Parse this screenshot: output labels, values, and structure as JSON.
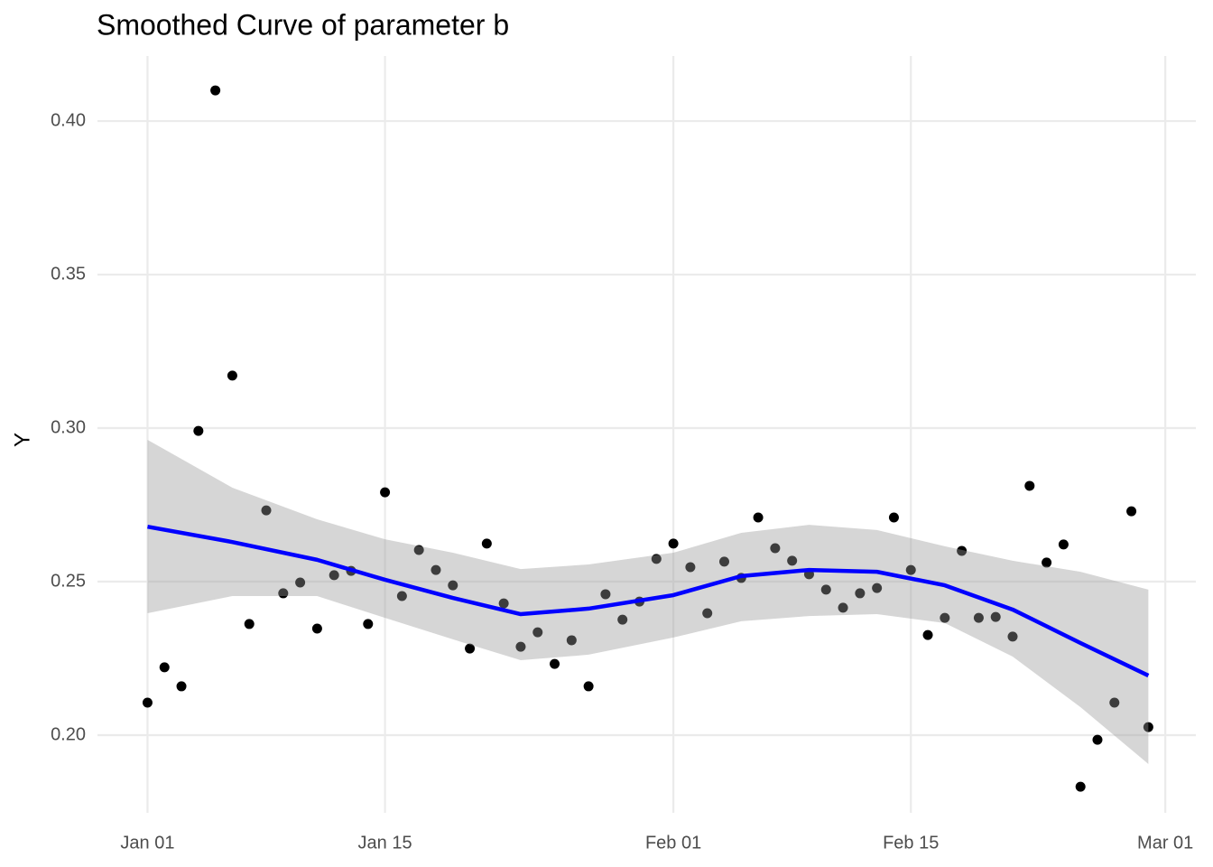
{
  "chart_data": {
    "type": "scatter",
    "title": "Smoothed Curve of parameter b",
    "y_label": "Y",
    "x": [
      0,
      1,
      2,
      3,
      4,
      5,
      6,
      7,
      8,
      9,
      10,
      11,
      12,
      13,
      14,
      15,
      16,
      17,
      18,
      19,
      20,
      21,
      22,
      23,
      24,
      25,
      26,
      27,
      28,
      29,
      30,
      31,
      32,
      33,
      34,
      35,
      36,
      37,
      38,
      39,
      40,
      41,
      42,
      43,
      44,
      45,
      46,
      47,
      48,
      49,
      50,
      51,
      52,
      53,
      54,
      55,
      56,
      57,
      58,
      59
    ],
    "values": [
      0.2106,
      0.2221,
      0.2159,
      0.2991,
      0.41,
      0.3171,
      0.2362,
      0.2732,
      0.2462,
      0.2497,
      0.2347,
      0.2521,
      0.2535,
      0.2362,
      0.2791,
      0.2453,
      0.2603,
      0.2538,
      0.2488,
      0.2282,
      0.2624,
      0.2429,
      0.2288,
      0.2335,
      0.2232,
      0.2309,
      0.2159,
      0.2459,
      0.2376,
      0.2435,
      0.2574,
      0.2624,
      0.2547,
      0.2397,
      0.2565,
      0.2512,
      0.2709,
      0.2609,
      0.2568,
      0.2524,
      0.2474,
      0.2415,
      0.2462,
      0.2479,
      0.2709,
      0.2538,
      0.2326,
      0.2382,
      0.26,
      0.2382,
      0.2385,
      0.2321,
      0.2812,
      0.2562,
      0.2621,
      0.1832,
      0.1985,
      0.2106,
      0.2729,
      0.2026
    ],
    "color": "#000000",
    "smooth": {
      "color": "#0000ff",
      "band_color": "#999999",
      "x": [
        0,
        5,
        10,
        14,
        18,
        22,
        26,
        31,
        35,
        39,
        43,
        47,
        51,
        55,
        59
      ],
      "values": [
        0.2679,
        0.2629,
        0.2571,
        0.2506,
        0.2447,
        0.2394,
        0.2412,
        0.2456,
        0.2518,
        0.2538,
        0.2532,
        0.2488,
        0.2409,
        0.23,
        0.2194
      ],
      "lower": [
        0.2397,
        0.2453,
        0.2453,
        0.2382,
        0.2312,
        0.2244,
        0.2262,
        0.2318,
        0.2371,
        0.2388,
        0.2394,
        0.2365,
        0.2256,
        0.2091,
        0.1906
      ],
      "upper": [
        0.2962,
        0.2806,
        0.2703,
        0.2638,
        0.2594,
        0.2541,
        0.2556,
        0.2594,
        0.2659,
        0.2685,
        0.2668,
        0.2615,
        0.2568,
        0.2532,
        0.2474
      ]
    },
    "xlim": [
      -2.95,
      61.8
    ],
    "xticks": [
      {
        "value": 0,
        "label": "Jan 01"
      },
      {
        "value": 14,
        "label": "Jan 15"
      },
      {
        "value": 31,
        "label": "Feb 01"
      },
      {
        "value": 45,
        "label": "Feb 15"
      },
      {
        "value": 60,
        "label": "Mar 01"
      }
    ],
    "ylim": [
      0.1747,
      0.4212
    ],
    "yticks": [
      {
        "value": 0.2,
        "label": "0.20"
      },
      {
        "value": 0.25,
        "label": "0.25"
      },
      {
        "value": 0.3,
        "label": "0.30"
      },
      {
        "value": 0.35,
        "label": "0.35"
      },
      {
        "value": 0.4,
        "label": "0.40"
      }
    ],
    "grid": true
  }
}
